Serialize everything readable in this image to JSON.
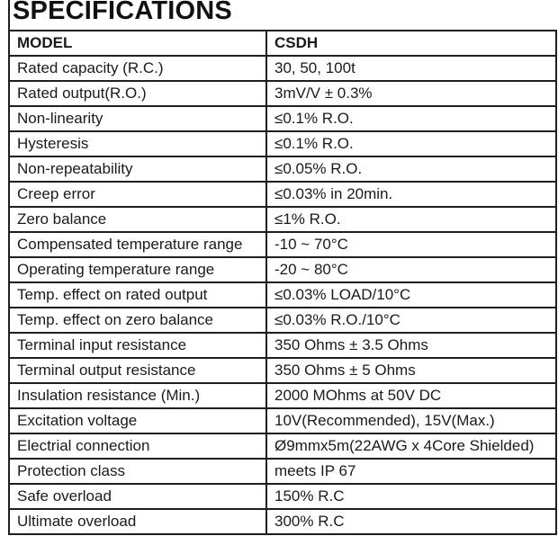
{
  "page": {
    "title": "SPECIFICATIONS"
  },
  "table": {
    "header": {
      "model": "MODEL",
      "value": "CSDH"
    },
    "rows": [
      {
        "label": "Rated capacity (R.C.)",
        "value": "30, 50, 100t"
      },
      {
        "label": "Rated output(R.O.)",
        "value": "3mV/V ± 0.3%"
      },
      {
        "label": "Non-linearity",
        "value": "≤0.1% R.O."
      },
      {
        "label": "Hysteresis",
        "value": "≤0.1% R.O."
      },
      {
        "label": "Non-repeatability",
        "value": "≤0.05% R.O."
      },
      {
        "label": "Creep error",
        "value": "≤0.03% in 20min."
      },
      {
        "label": "Zero balance",
        "value": "≤1% R.O."
      },
      {
        "label": "Compensated temperature range",
        "value": "-10 ~ 70°C"
      },
      {
        "label": "Operating temperature range",
        "value": "-20 ~ 80°C"
      },
      {
        "label": "Temp. effect on rated output",
        "value": "≤0.03% LOAD/10°C"
      },
      {
        "label": "Temp. effect on zero balance",
        "value": "≤0.03% R.O./10°C"
      },
      {
        "label": "Terminal input resistance",
        "value": "350 Ohms ± 3.5 Ohms"
      },
      {
        "label": "Terminal output resistance",
        "value": "350 Ohms ± 5 Ohms"
      },
      {
        "label": "Insulation resistance (Min.)",
        "value": "2000 MOhms at 50V DC"
      },
      {
        "label": "Excitation voltage",
        "value": "10V(Recommended), 15V(Max.)"
      },
      {
        "label": "Electrial connection",
        "value": "Ø9mmx5m(22AWG x 4Core Shielded)"
      },
      {
        "label": "Protection class",
        "value": "meets IP 67"
      },
      {
        "label": "Safe overload",
        "value": "150% R.C"
      },
      {
        "label": "Ultimate overload",
        "value": "300% R.C"
      }
    ]
  },
  "colors": {
    "text": "#1a1a1a",
    "border": "#1f1f1f",
    "background": "#ffffff"
  }
}
